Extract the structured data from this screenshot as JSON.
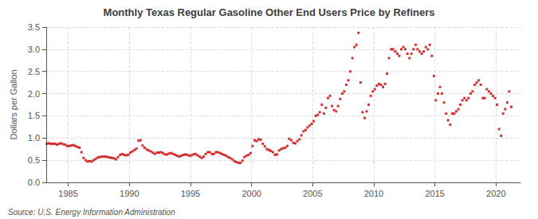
{
  "chart_data": {
    "type": "scatter",
    "title": "Monthly Texas Regular Gasoline Other End Users Price by Refiners",
    "ylabel": "Dollars per Gallon",
    "annotations": [
      "Source: U.S. Energy Information Administration"
    ],
    "color": "#cc0000",
    "marker": "square",
    "grid": true,
    "xlim": [
      1983.2,
      2022.0
    ],
    "ylim": [
      0.0,
      3.5
    ],
    "xticks": [
      1985,
      1990,
      1995,
      2000,
      2005,
      2010,
      2015,
      2020
    ],
    "yticks": [
      {
        "value": 0.0,
        "label": "0.0"
      },
      0.5,
      {
        "value": 1.0,
        "label": "1.0"
      },
      1.5,
      {
        "value": 2.0,
        "label": "2.0"
      },
      2.5,
      {
        "value": 3.0,
        "label": "3.0"
      },
      3.5
    ],
    "x": [
      1983.25,
      1983.42,
      1983.58,
      1983.75,
      1983.92,
      1984.08,
      1984.25,
      1984.42,
      1984.58,
      1984.75,
      1984.92,
      1985.08,
      1985.25,
      1985.42,
      1985.58,
      1985.75,
      1985.92,
      1986.08,
      1986.25,
      1986.42,
      1986.58,
      1986.75,
      1986.92,
      1987.08,
      1987.25,
      1987.42,
      1987.58,
      1987.75,
      1987.92,
      1988.08,
      1988.25,
      1988.42,
      1988.58,
      1988.75,
      1988.92,
      1989.08,
      1989.25,
      1989.42,
      1989.58,
      1989.75,
      1989.92,
      1990.08,
      1990.25,
      1990.42,
      1990.58,
      1990.75,
      1990.92,
      1991.08,
      1991.25,
      1991.42,
      1991.58,
      1991.75,
      1991.92,
      1992.08,
      1992.25,
      1992.42,
      1992.58,
      1992.75,
      1992.92,
      1993.08,
      1993.25,
      1993.42,
      1993.58,
      1993.75,
      1993.92,
      1994.08,
      1994.25,
      1994.42,
      1994.58,
      1994.75,
      1994.92,
      1995.08,
      1995.25,
      1995.42,
      1995.58,
      1995.75,
      1995.92,
      1996.08,
      1996.25,
      1996.42,
      1996.58,
      1996.75,
      1996.92,
      1997.08,
      1997.25,
      1997.42,
      1997.58,
      1997.75,
      1997.92,
      1998.08,
      1998.25,
      1998.42,
      1998.58,
      1998.75,
      1998.92,
      1999.08,
      1999.25,
      1999.42,
      1999.58,
      1999.75,
      1999.92,
      2000.08,
      2000.25,
      2000.42,
      2000.58,
      2000.75,
      2000.92,
      2001.08,
      2001.25,
      2001.42,
      2001.58,
      2001.75,
      2001.92,
      2002.08,
      2002.25,
      2002.42,
      2002.58,
      2002.75,
      2002.92,
      2003.08,
      2003.25,
      2003.42,
      2003.58,
      2003.75,
      2003.92,
      2004.08,
      2004.25,
      2004.42,
      2004.58,
      2004.75,
      2004.92,
      2005.08,
      2005.25,
      2005.42,
      2005.58,
      2005.75,
      2005.92,
      2006.08,
      2006.25,
      2006.42,
      2006.58,
      2006.75,
      2006.92,
      2007.08,
      2007.25,
      2007.42,
      2007.58,
      2007.75,
      2007.92,
      2008.08,
      2008.25,
      2008.42,
      2008.58,
      2008.75,
      2008.92,
      2009.08,
      2009.25,
      2009.42,
      2009.58,
      2009.75,
      2009.92,
      2010.08,
      2010.25,
      2010.42,
      2010.58,
      2010.75,
      2010.92,
      2011.08,
      2011.25,
      2011.42,
      2011.58,
      2011.75,
      2011.92,
      2012.08,
      2012.25,
      2012.42,
      2012.58,
      2012.75,
      2012.92,
      2013.08,
      2013.25,
      2013.42,
      2013.58,
      2013.75,
      2013.92,
      2014.08,
      2014.25,
      2014.42,
      2014.58,
      2014.75,
      2014.92,
      2015.08,
      2015.25,
      2015.42,
      2015.58,
      2015.75,
      2015.92,
      2016.08,
      2016.25,
      2016.42,
      2016.58,
      2016.75,
      2016.92,
      2017.08,
      2017.25,
      2017.42,
      2017.58,
      2017.75,
      2017.92,
      2018.08,
      2018.25,
      2018.42,
      2018.58,
      2018.75,
      2018.92,
      2019.08,
      2019.25,
      2019.42,
      2019.58,
      2019.75,
      2019.92,
      2020.08,
      2020.25,
      2020.42,
      2020.58,
      2020.75,
      2020.92,
      2021.08,
      2021.25
    ],
    "values": [
      0.87,
      0.88,
      0.87,
      0.87,
      0.87,
      0.85,
      0.87,
      0.88,
      0.86,
      0.85,
      0.82,
      0.82,
      0.83,
      0.84,
      0.82,
      0.8,
      0.78,
      0.68,
      0.55,
      0.5,
      0.47,
      0.48,
      0.47,
      0.5,
      0.53,
      0.56,
      0.57,
      0.58,
      0.58,
      0.58,
      0.57,
      0.56,
      0.55,
      0.54,
      0.52,
      0.57,
      0.62,
      0.64,
      0.62,
      0.61,
      0.62,
      0.67,
      0.7,
      0.73,
      0.76,
      0.94,
      0.95,
      0.83,
      0.78,
      0.74,
      0.72,
      0.7,
      0.67,
      0.64,
      0.67,
      0.67,
      0.68,
      0.66,
      0.63,
      0.63,
      0.65,
      0.66,
      0.64,
      0.62,
      0.6,
      0.58,
      0.6,
      0.62,
      0.63,
      0.62,
      0.6,
      0.61,
      0.63,
      0.64,
      0.61,
      0.58,
      0.55,
      0.58,
      0.64,
      0.68,
      0.68,
      0.64,
      0.64,
      0.68,
      0.68,
      0.66,
      0.64,
      0.62,
      0.6,
      0.57,
      0.55,
      0.52,
      0.48,
      0.46,
      0.44,
      0.44,
      0.49,
      0.57,
      0.6,
      0.62,
      0.66,
      0.82,
      0.95,
      0.93,
      0.97,
      0.96,
      0.87,
      0.81,
      0.75,
      0.73,
      0.71,
      0.68,
      0.62,
      0.63,
      0.72,
      0.75,
      0.77,
      0.78,
      0.82,
      0.98,
      0.95,
      0.89,
      0.88,
      0.93,
      0.97,
      1.06,
      1.15,
      1.18,
      1.24,
      1.28,
      1.32,
      1.38,
      1.5,
      1.52,
      1.58,
      1.75,
      1.55,
      1.68,
      1.9,
      1.95,
      1.72,
      1.63,
      1.6,
      1.72,
      1.88,
      2.0,
      2.05,
      2.2,
      2.3,
      2.5,
      2.8,
      3.05,
      3.1,
      3.37,
      2.25,
      1.58,
      1.45,
      1.6,
      1.75,
      1.95,
      2.05,
      2.1,
      2.18,
      2.22,
      2.2,
      2.15,
      2.22,
      2.45,
      2.8,
      3.0,
      3.0,
      2.95,
      2.9,
      2.85,
      3.0,
      3.05,
      3.0,
      2.9,
      2.8,
      2.9,
      3.0,
      3.1,
      3.0,
      2.95,
      2.9,
      2.95,
      3.05,
      3.0,
      3.1,
      2.85,
      2.4,
      1.85,
      2.0,
      2.15,
      2.0,
      1.8,
      1.55,
      1.4,
      1.3,
      1.55,
      1.55,
      1.6,
      1.65,
      1.75,
      1.85,
      1.9,
      1.85,
      1.9,
      2.0,
      2.05,
      2.2,
      2.25,
      2.3,
      2.2,
      1.9,
      1.9,
      2.1,
      2.05,
      2.0,
      1.95,
      1.9,
      1.75,
      1.2,
      1.05,
      1.55,
      1.65,
      1.8,
      2.05,
      1.7
    ]
  }
}
